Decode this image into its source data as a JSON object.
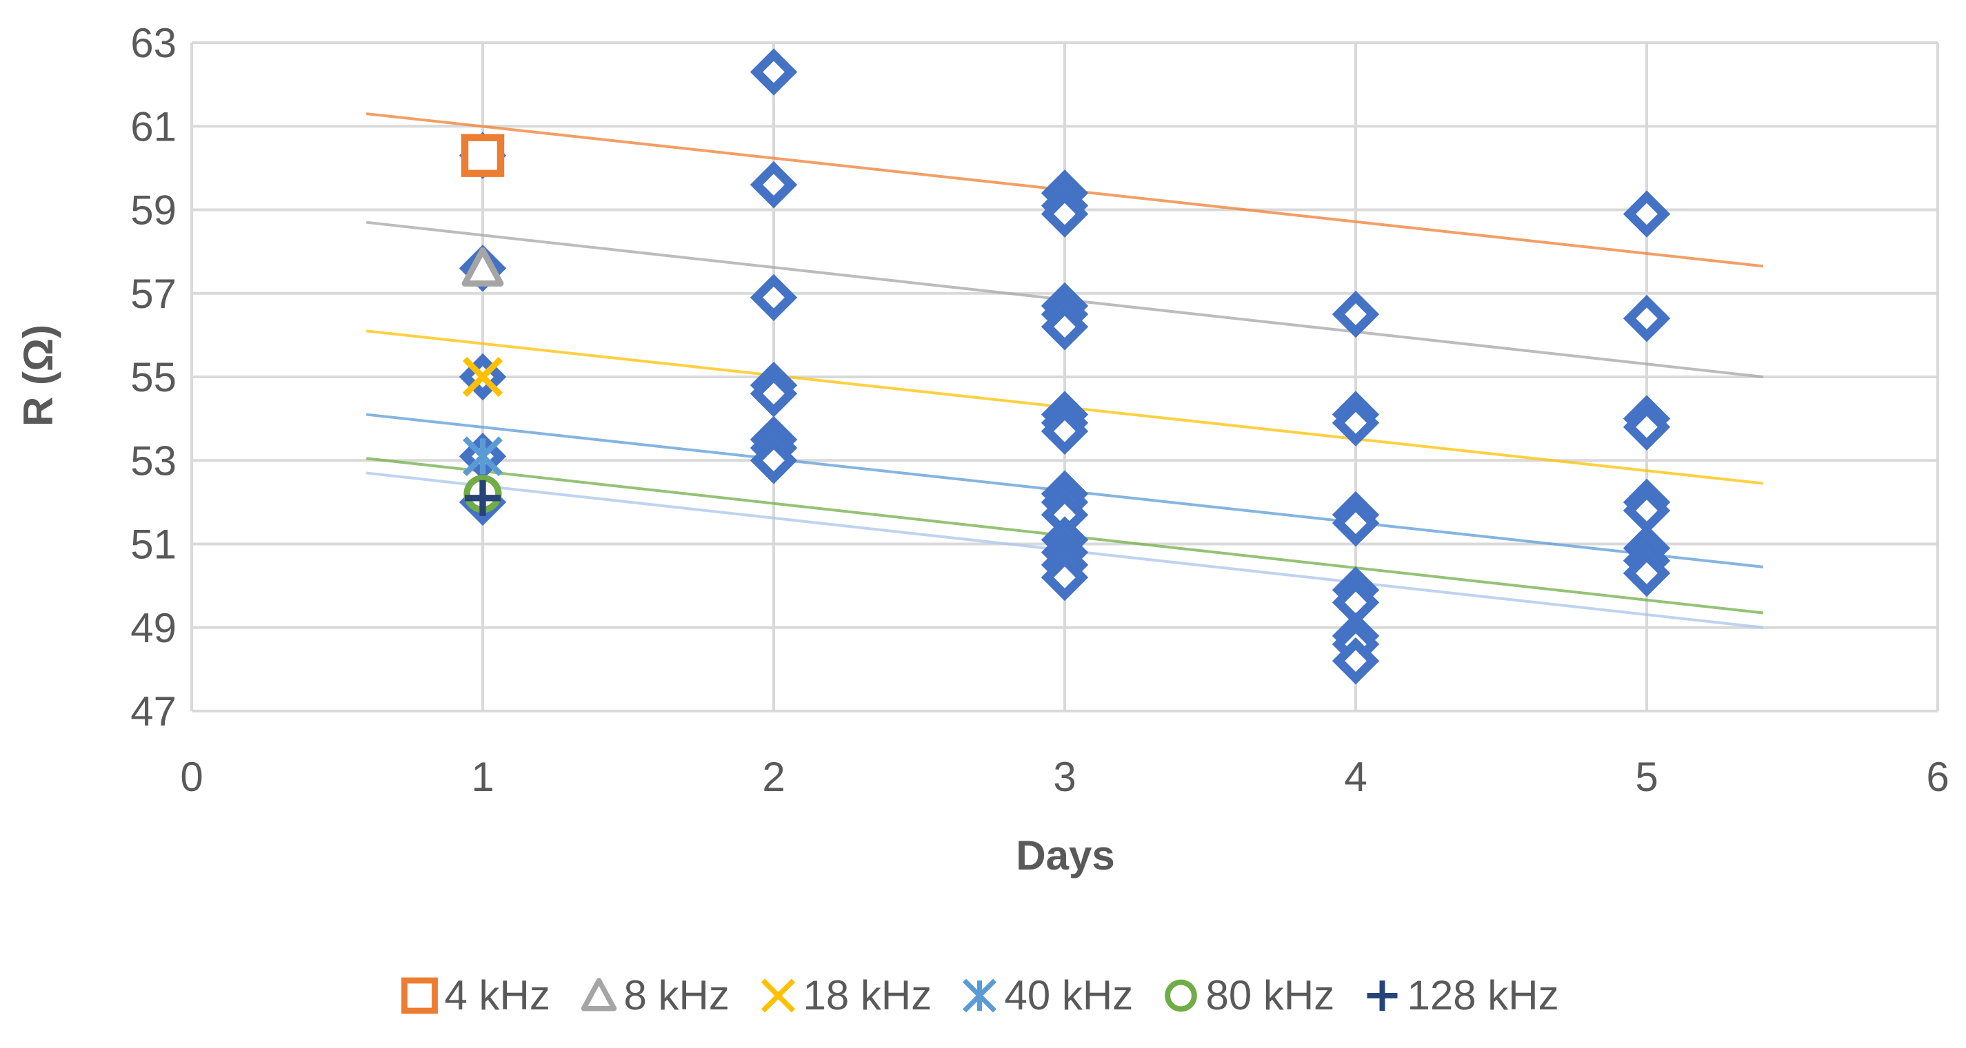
{
  "chart_data": {
    "type": "scatter",
    "title": "",
    "xlabel": "Days",
    "ylabel": "R (Ω)",
    "xlim": [
      0,
      6
    ],
    "ylim": [
      47,
      63
    ],
    "xticks": [
      0,
      1,
      2,
      3,
      4,
      5,
      6
    ],
    "yticks": [
      47,
      49,
      51,
      53,
      55,
      57,
      59,
      61,
      63
    ],
    "grid": true,
    "legend_position": "bottom",
    "series": [
      {
        "name": "4 kHz",
        "marker": "square",
        "color": "#ED7D31",
        "points": [
          {
            "x": 1,
            "y": 60.3
          }
        ],
        "trendline": {
          "color": "#ED7D31",
          "x_start": 0.6,
          "x_end": 5.4,
          "y_start": 61.3,
          "y_end": 57.65
        }
      },
      {
        "name": "8 kHz",
        "marker": "triangle",
        "color": "#A5A5A5",
        "points": [
          {
            "x": 1,
            "y": 57.6
          }
        ],
        "trendline": {
          "color": "#A5A5A5",
          "x_start": 0.6,
          "x_end": 5.4,
          "y_start": 58.7,
          "y_end": 55.0
        }
      },
      {
        "name": "18 kHz",
        "marker": "x",
        "color": "#FFC000",
        "points": [
          {
            "x": 1,
            "y": 55.0
          }
        ],
        "trendline": {
          "color": "#FFC000",
          "x_start": 0.6,
          "x_end": 5.4,
          "y_start": 56.1,
          "y_end": 52.45
        }
      },
      {
        "name": "40 kHz",
        "marker": "star",
        "color": "#5B9BD5",
        "points": [
          {
            "x": 1,
            "y": 53.1
          }
        ],
        "trendline": {
          "color": "#5B9BD5",
          "x_start": 0.6,
          "x_end": 5.4,
          "y_start": 54.1,
          "y_end": 50.45
        }
      },
      {
        "name": "80 kHz",
        "marker": "circle",
        "color": "#70AD47",
        "points": [
          {
            "x": 1,
            "y": 52.2
          }
        ],
        "trendline": {
          "color": "#70AD47",
          "x_start": 0.6,
          "x_end": 5.4,
          "y_start": 53.05,
          "y_end": 49.35
        }
      },
      {
        "name": "128 kHz",
        "marker": "plus",
        "color": "#264478",
        "points": [
          {
            "x": 1,
            "y": 52.1
          }
        ],
        "trendline": {
          "color": "#A9C4EB",
          "x_start": 0.6,
          "x_end": 5.4,
          "y_start": 52.7,
          "y_end": 49.0
        }
      }
    ],
    "background_points": {
      "marker": "diamond",
      "color": "#4472C4",
      "points": [
        {
          "x": 1,
          "y": 60.3
        },
        {
          "x": 1,
          "y": 57.6
        },
        {
          "x": 1,
          "y": 55.0
        },
        {
          "x": 1,
          "y": 53.1
        },
        {
          "x": 1,
          "y": 52.0
        },
        {
          "x": 2,
          "y": 62.3
        },
        {
          "x": 2,
          "y": 59.6
        },
        {
          "x": 2,
          "y": 56.9
        },
        {
          "x": 2,
          "y": 54.8
        },
        {
          "x": 2,
          "y": 54.6
        },
        {
          "x": 2,
          "y": 53.5
        },
        {
          "x": 2,
          "y": 53.3
        },
        {
          "x": 2,
          "y": 53.0
        },
        {
          "x": 3,
          "y": 59.4
        },
        {
          "x": 3,
          "y": 59.1
        },
        {
          "x": 3,
          "y": 58.9
        },
        {
          "x": 3,
          "y": 56.7
        },
        {
          "x": 3,
          "y": 56.5
        },
        {
          "x": 3,
          "y": 56.2
        },
        {
          "x": 3,
          "y": 54.1
        },
        {
          "x": 3,
          "y": 53.9
        },
        {
          "x": 3,
          "y": 53.7
        },
        {
          "x": 3,
          "y": 52.2
        },
        {
          "x": 3,
          "y": 52.0
        },
        {
          "x": 3,
          "y": 51.7
        },
        {
          "x": 3,
          "y": 51.1
        },
        {
          "x": 3,
          "y": 50.8
        },
        {
          "x": 3,
          "y": 50.5
        },
        {
          "x": 3,
          "y": 50.2
        },
        {
          "x": 4,
          "y": 56.5
        },
        {
          "x": 4,
          "y": 54.1
        },
        {
          "x": 4,
          "y": 53.9
        },
        {
          "x": 4,
          "y": 51.7
        },
        {
          "x": 4,
          "y": 51.5
        },
        {
          "x": 4,
          "y": 49.9
        },
        {
          "x": 4,
          "y": 49.6
        },
        {
          "x": 4,
          "y": 48.8
        },
        {
          "x": 4,
          "y": 48.6
        },
        {
          "x": 4,
          "y": 48.2
        },
        {
          "x": 5,
          "y": 58.9
        },
        {
          "x": 5,
          "y": 56.4
        },
        {
          "x": 5,
          "y": 54.0
        },
        {
          "x": 5,
          "y": 53.8
        },
        {
          "x": 5,
          "y": 52.0
        },
        {
          "x": 5,
          "y": 51.8
        },
        {
          "x": 5,
          "y": 50.9
        },
        {
          "x": 5,
          "y": 50.6
        },
        {
          "x": 5,
          "y": 50.3
        }
      ]
    }
  }
}
